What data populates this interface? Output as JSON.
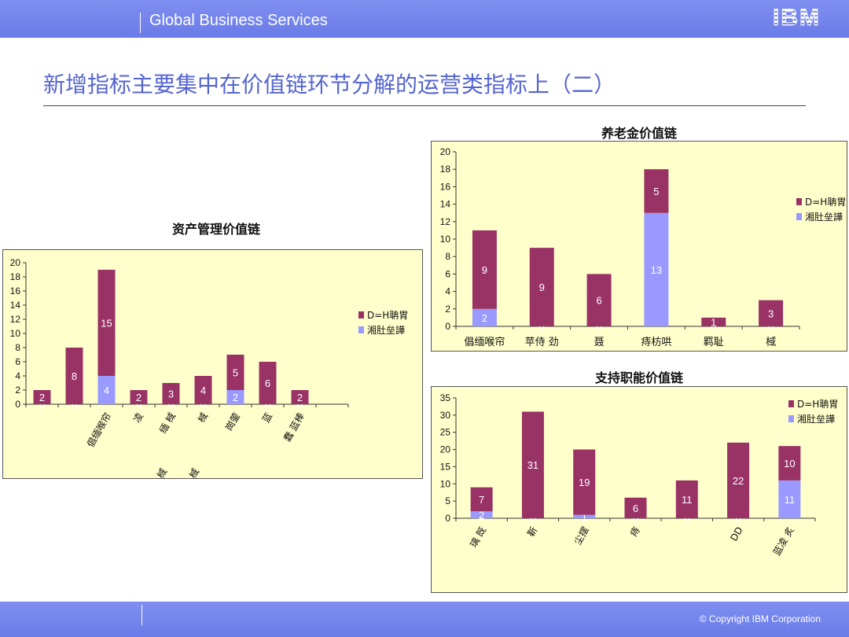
{
  "header": {
    "brand": "Global Business Services",
    "logo": "IBM"
  },
  "page_title": "新增指标主要集中在价值链环节分解的运营类指标上（二）",
  "footer": {
    "copyright": "© Copyright IBM Corporation"
  },
  "colors": {
    "series1": "#993366",
    "series2": "#9999ff",
    "plot_bg": "#ffffcc"
  },
  "chart_data": [
    {
      "type": "bar",
      "stacked": true,
      "title": "资产管理价值链",
      "categories": [
        "",
        "",
        "倡缅喉帘",
        "凌",
        "缅 棫",
        "棫",
        "崗蓥",
        "蓝",
        "蠢 蓝棒",
        ""
      ],
      "category_sublabels": [
        "",
        "",
        "",
        "",
        "棫",
        "棫",
        "",
        "",
        "",
        ""
      ],
      "series": [
        {
          "name": "湘肚垒譁",
          "values": [
            0,
            0,
            4,
            0,
            0,
            0,
            2,
            0,
            0,
            0
          ]
        },
        {
          "name": "D=H聃胃",
          "values": [
            2,
            8,
            15,
            2,
            3,
            4,
            5,
            6,
            2,
            0
          ]
        }
      ],
      "ylim": [
        0,
        20
      ],
      "yticks": [
        0,
        2,
        4,
        6,
        8,
        10,
        12,
        14,
        16,
        18,
        20
      ],
      "legend": "right"
    },
    {
      "type": "bar",
      "stacked": true,
      "title": "养老金价值链",
      "categories": [
        "倡缅喉帘",
        "苹侍 劲",
        "聂",
        "痔枋哄",
        "羁耻",
        "棫"
      ],
      "series": [
        {
          "name": "湘肚垒譁",
          "values": [
            2,
            0,
            0,
            13,
            0,
            0
          ]
        },
        {
          "name": "D=H聃胃",
          "values": [
            9,
            9,
            6,
            5,
            1,
            3
          ]
        }
      ],
      "ylim": [
        0,
        20
      ],
      "yticks": [
        0,
        2,
        4,
        6,
        8,
        10,
        12,
        14,
        16,
        18,
        20
      ],
      "legend": "right"
    },
    {
      "type": "bar",
      "stacked": true,
      "title": "支持职能价值链",
      "categories": [
        "璃 既",
        "靳",
        "尘摆",
        "痔",
        "",
        "DD",
        "蓝凌 炙"
      ],
      "series": [
        {
          "name": "湘肚垒譁",
          "values": [
            2,
            0,
            1,
            0,
            0,
            0,
            11
          ]
        },
        {
          "name": "D=H聃胃",
          "values": [
            7,
            31,
            19,
            6,
            11,
            22,
            10
          ]
        }
      ],
      "ylim": [
        0,
        35
      ],
      "yticks": [
        0,
        5,
        10,
        15,
        20,
        25,
        30,
        35
      ],
      "legend": "right"
    }
  ]
}
